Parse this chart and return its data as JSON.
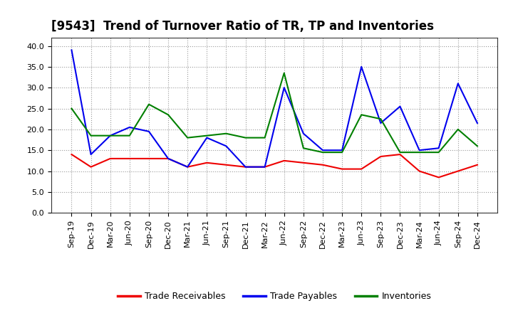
{
  "title": "[9543]  Trend of Turnover Ratio of TR, TP and Inventories",
  "labels": [
    "Sep-19",
    "Dec-19",
    "Mar-20",
    "Jun-20",
    "Sep-20",
    "Dec-20",
    "Mar-21",
    "Jun-21",
    "Sep-21",
    "Dec-21",
    "Mar-22",
    "Jun-22",
    "Sep-22",
    "Dec-22",
    "Mar-23",
    "Jun-23",
    "Sep-23",
    "Dec-23",
    "Mar-24",
    "Jun-24",
    "Sep-24",
    "Dec-24"
  ],
  "trade_receivables": [
    14.0,
    11.0,
    13.0,
    13.0,
    13.0,
    13.0,
    11.0,
    12.0,
    11.5,
    11.0,
    11.0,
    12.5,
    12.0,
    11.5,
    10.5,
    10.5,
    13.5,
    14.0,
    10.0,
    8.5,
    10.0,
    11.5
  ],
  "trade_payables": [
    39.0,
    14.0,
    18.5,
    20.5,
    19.5,
    13.0,
    11.0,
    18.0,
    16.0,
    11.0,
    11.0,
    30.0,
    19.0,
    15.0,
    15.0,
    35.0,
    21.5,
    25.5,
    15.0,
    15.5,
    31.0,
    21.5
  ],
  "inventories": [
    25.0,
    18.5,
    18.5,
    18.5,
    26.0,
    23.5,
    18.0,
    18.5,
    19.0,
    18.0,
    18.0,
    33.5,
    15.5,
    14.5,
    14.5,
    23.5,
    22.5,
    14.5,
    14.5,
    14.5,
    20.0,
    16.0
  ],
  "tr_color": "#ee0000",
  "tp_color": "#0000ee",
  "inv_color": "#008000",
  "ylim": [
    0,
    42
  ],
  "yticks": [
    0.0,
    5.0,
    10.0,
    15.0,
    20.0,
    25.0,
    30.0,
    35.0,
    40.0
  ],
  "legend_labels": [
    "Trade Receivables",
    "Trade Payables",
    "Inventories"
  ],
  "background_color": "#ffffff",
  "plot_bg_color": "#ffffff",
  "grid_color": "#999999",
  "title_fontsize": 12,
  "legend_fontsize": 9,
  "tick_fontsize": 8,
  "linewidth": 1.5
}
